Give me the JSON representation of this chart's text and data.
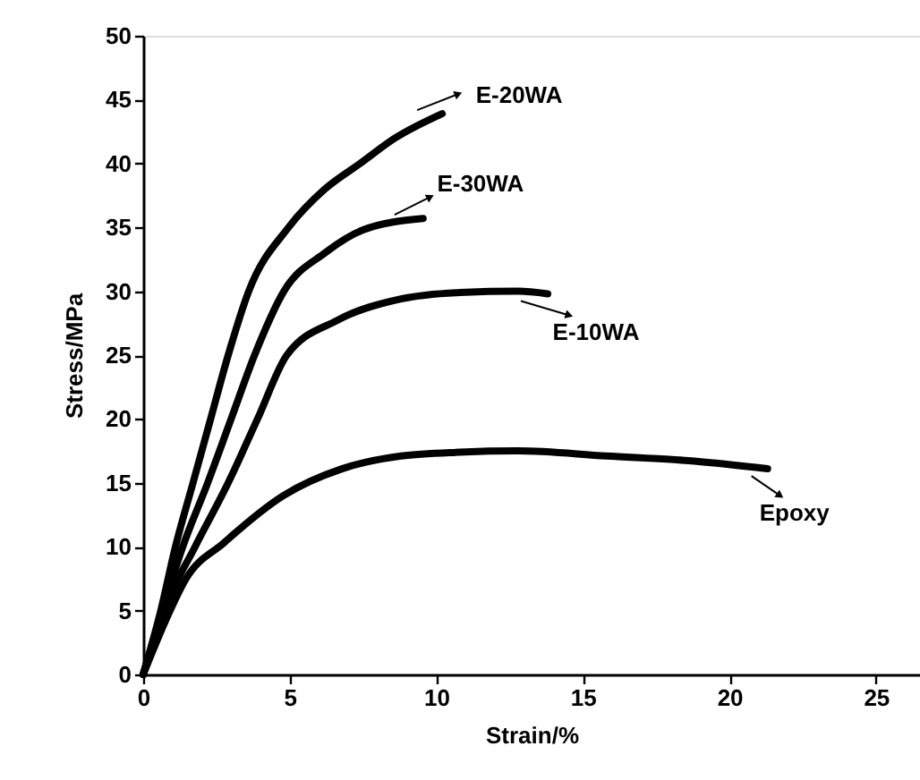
{
  "chart_data": {
    "type": "line",
    "xlabel": "Strain/%",
    "ylabel": "Stress/MPa",
    "xlim": [
      0,
      26.5
    ],
    "ylim": [
      0,
      50
    ],
    "xticks": [
      0,
      5,
      10,
      15,
      20,
      25
    ],
    "yticks": [
      0,
      5,
      10,
      15,
      20,
      25,
      30,
      35,
      40,
      45,
      50
    ],
    "grid": false,
    "marker": "none",
    "line_style": "solid",
    "series": [
      {
        "color": "#000000",
        "x": [
          0,
          0.6,
          1.1,
          1.7,
          2.3,
          2.9,
          3.6,
          4.96,
          6.2,
          7.4,
          8.6,
          10.2
        ],
        "values": [
          0,
          5,
          10,
          15,
          20,
          25,
          30,
          35,
          38,
          40,
          42,
          43.9
        ]
      },
      {
        "color": "#000000",
        "x": [
          0,
          0.65,
          1.35,
          2.2,
          3.0,
          3.8,
          4.8,
          6.2,
          7.5,
          9.55
        ],
        "values": [
          0,
          5,
          10,
          15,
          20,
          25,
          30,
          33,
          34.8,
          35.7
        ]
      },
      {
        "color": "#000000",
        "x": [
          0,
          0.7,
          1.77,
          2.9,
          3.9,
          4.9,
          6.6,
          8.8,
          10.8,
          12.8,
          13.8
        ],
        "values": [
          0,
          5,
          10,
          15,
          20,
          25,
          27.7,
          29.4,
          29.9,
          30.0,
          29.8
        ]
      },
      {
        "color": "#000000",
        "x": [
          0,
          0.76,
          1.46,
          2.75,
          4.78,
          6.78,
          8.8,
          10.8,
          12.8,
          15.8,
          18.8,
          21.3
        ],
        "values": [
          0,
          4.2,
          7.5,
          10.3,
          14.0,
          16.1,
          17.1,
          17.4,
          17.5,
          17.1,
          16.7,
          16.1
        ]
      }
    ],
    "annotations": [
      {
        "text": "E-20WA",
        "x": 10.2,
        "y": 43.9
      },
      {
        "text": "E-30WA",
        "x": 9.55,
        "y": 35.7
      },
      {
        "text": "E-10WA",
        "x": 13.8,
        "y": 29.8
      },
      {
        "text": "Epoxy",
        "x": 21.3,
        "y": 16.1
      }
    ]
  }
}
